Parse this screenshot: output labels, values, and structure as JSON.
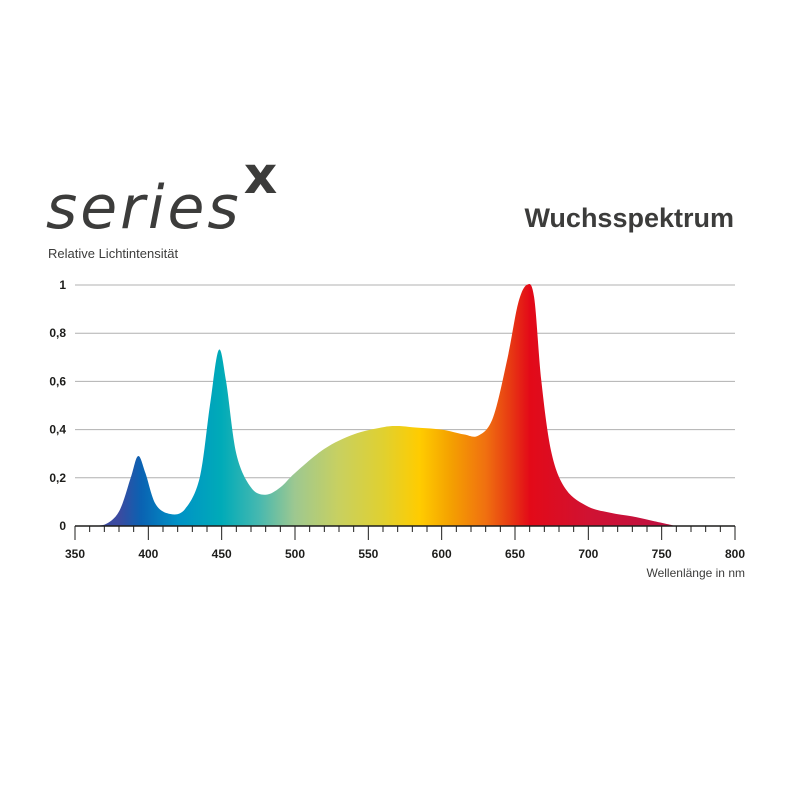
{
  "brand": {
    "logo_text": "series",
    "logo_mark": "x"
  },
  "chart_data": {
    "type": "area",
    "title": "Wuchsspektrum",
    "ylabel": "Relative Lichtintensität",
    "xlabel": "Wellenlänge in nm",
    "xlim": [
      350,
      800
    ],
    "ylim": [
      0,
      1
    ],
    "xticks": [
      350,
      400,
      450,
      500,
      550,
      600,
      650,
      700,
      750,
      800
    ],
    "xtick_labels": [
      "350",
      "400",
      "450",
      "500",
      "550",
      "600",
      "650",
      "700",
      "750",
      "800"
    ],
    "yticks": [
      0,
      0.2,
      0.4,
      0.6,
      0.8,
      1
    ],
    "ytick_labels": [
      "0",
      "0,2",
      "0,4",
      "0,6",
      "0,8",
      "1"
    ],
    "grid": "horizontal",
    "fill": "visible spectrum colors by wavelength",
    "x": [
      360,
      370,
      380,
      388,
      393,
      398,
      405,
      415,
      425,
      435,
      442,
      448,
      453,
      460,
      470,
      480,
      490,
      500,
      520,
      540,
      560,
      570,
      580,
      600,
      615,
      625,
      635,
      645,
      652,
      658,
      663,
      668,
      675,
      685,
      700,
      715,
      730,
      745,
      760
    ],
    "y": [
      0,
      0.005,
      0.06,
      0.2,
      0.29,
      0.22,
      0.09,
      0.05,
      0.07,
      0.2,
      0.5,
      0.73,
      0.6,
      0.3,
      0.16,
      0.13,
      0.16,
      0.22,
      0.32,
      0.38,
      0.41,
      0.415,
      0.41,
      0.4,
      0.38,
      0.375,
      0.45,
      0.7,
      0.92,
      1.0,
      0.95,
      0.6,
      0.3,
      0.15,
      0.08,
      0.055,
      0.04,
      0.02,
      0
    ],
    "colors": {
      "grid": "#b0b0b0",
      "axis": "#1d1d1b",
      "text": "#3c3c3b"
    }
  }
}
